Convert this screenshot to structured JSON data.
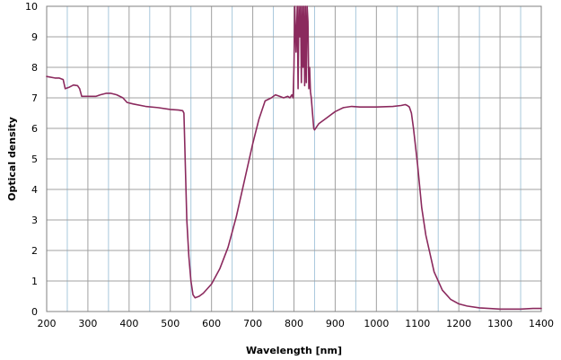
{
  "chart_data": {
    "type": "line",
    "title": "",
    "xlabel": "Wavelength [nm]",
    "ylabel": "Optical density",
    "xlim": [
      200,
      1400
    ],
    "ylim": [
      0,
      10
    ],
    "x_major_ticks": [
      200,
      300,
      400,
      500,
      600,
      700,
      800,
      900,
      1000,
      1100,
      1200,
      1300,
      1400
    ],
    "y_major_ticks": [
      0,
      1,
      2,
      3,
      4,
      5,
      6,
      7,
      8,
      9,
      10
    ],
    "x_minor_step": 50,
    "grid": true,
    "legend": "none",
    "colors": {
      "series": "#8b2a5e",
      "grid": "#a8c8dc",
      "frame": "#808080"
    },
    "series": [
      {
        "name": "",
        "x": [
          200,
          220,
          230,
          240,
          245,
          255,
          265,
          275,
          280,
          285,
          295,
          310,
          320,
          330,
          345,
          355,
          370,
          385,
          395,
          410,
          440,
          470,
          500,
          520,
          530,
          533,
          537,
          540,
          545,
          550,
          555,
          560,
          570,
          580,
          590,
          600,
          610,
          620,
          640,
          660,
          680,
          700,
          715,
          730,
          745,
          755,
          765,
          775,
          785,
          790,
          795,
          798,
          800,
          802,
          805,
          808,
          810,
          812,
          814,
          816,
          818,
          820,
          822,
          824,
          826,
          828,
          830,
          832,
          834,
          836,
          838,
          840,
          842,
          845,
          848,
          850,
          855,
          860,
          880,
          900,
          920,
          940,
          960,
          1000,
          1040,
          1060,
          1070,
          1075,
          1080,
          1085,
          1090,
          1100,
          1110,
          1120,
          1140,
          1160,
          1180,
          1200,
          1220,
          1250,
          1300,
          1350,
          1380,
          1400
        ],
        "y": [
          7.7,
          7.65,
          7.65,
          7.6,
          7.3,
          7.35,
          7.42,
          7.4,
          7.3,
          7.05,
          7.05,
          7.05,
          7.05,
          7.1,
          7.15,
          7.15,
          7.1,
          7.0,
          6.85,
          6.8,
          6.72,
          6.68,
          6.62,
          6.6,
          6.58,
          6.5,
          4.5,
          3.0,
          1.8,
          1.0,
          0.55,
          0.45,
          0.5,
          0.6,
          0.75,
          0.9,
          1.15,
          1.4,
          2.1,
          3.1,
          4.3,
          5.5,
          6.3,
          6.9,
          7.0,
          7.1,
          7.05,
          7.0,
          7.05,
          7.0,
          7.1,
          7.0,
          8.0,
          10,
          8.5,
          10,
          7.3,
          10,
          9.0,
          10,
          7.5,
          10,
          8.0,
          10,
          7.4,
          10,
          7.5,
          10,
          9.5,
          7.3,
          8.0,
          7.2,
          7.0,
          6.5,
          6.0,
          5.95,
          6.05,
          6.15,
          6.35,
          6.55,
          6.68,
          6.72,
          6.7,
          6.7,
          6.72,
          6.75,
          6.78,
          6.75,
          6.7,
          6.5,
          6.0,
          4.8,
          3.4,
          2.5,
          1.3,
          0.7,
          0.4,
          0.25,
          0.18,
          0.12,
          0.08,
          0.08,
          0.1,
          0.1
        ]
      }
    ]
  }
}
